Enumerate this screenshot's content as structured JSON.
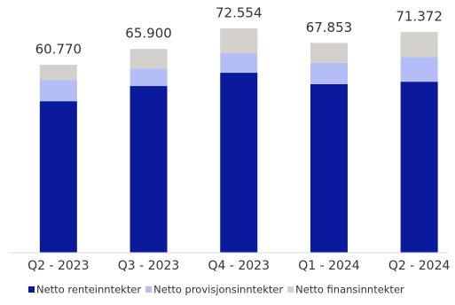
{
  "chart_data": {
    "type": "stacked_bar",
    "categories": [
      "Q2 - 2023",
      "Q3 - 2023",
      "Q4 - 2023",
      "Q1 - 2024",
      "Q2 - 2024"
    ],
    "series": [
      {
        "name": "Netto renteinntekter",
        "color": "#0b1a9c",
        "values": [
          49000,
          53900,
          58200,
          54500,
          55300
        ]
      },
      {
        "name": "Netto provisjonsinntekter",
        "color": "#b5bdf6",
        "values": [
          6900,
          5700,
          6300,
          6900,
          8000
        ]
      },
      {
        "name": "Netto finansinntekter",
        "color": "#d3d0cb",
        "values": [
          4870,
          6300,
          8054,
          6453,
          8072
        ]
      }
    ],
    "totals": {
      "values": [
        60770,
        65900,
        72554,
        67853,
        71372
      ],
      "value_labels": [
        "60.770",
        "65.900",
        "72.554",
        "67.853",
        "71.372"
      ]
    },
    "legend": "bottom"
  }
}
